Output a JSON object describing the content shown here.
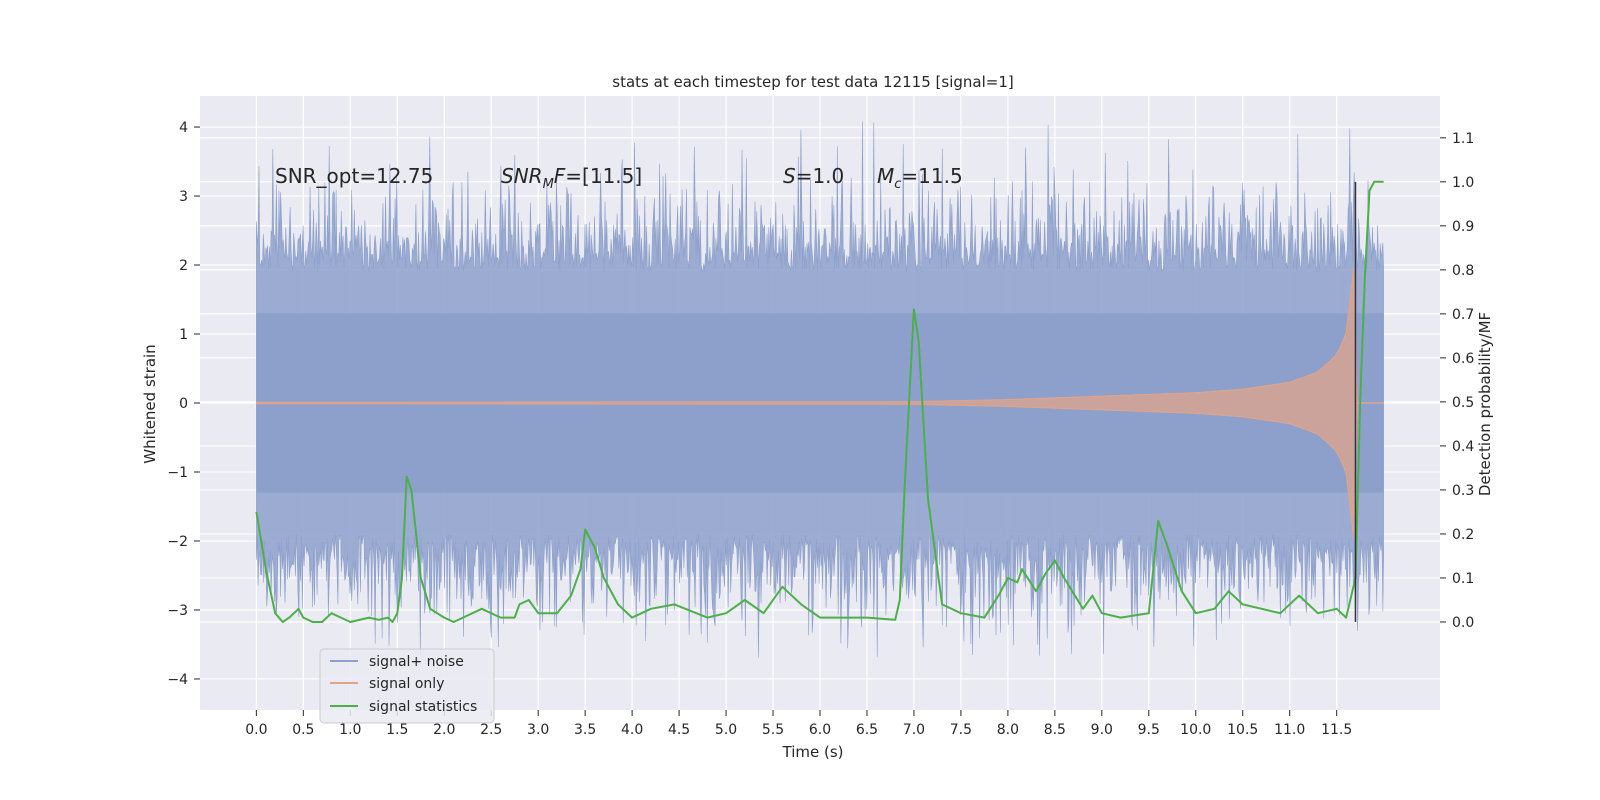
{
  "chart_data": {
    "type": "line",
    "title": "stats at each timestep for test data 12115 [signal=1]",
    "xlabel": "Time (s)",
    "ylabel_left": "Whitened strain",
    "ylabel_right": "Detection probability/MF",
    "xlim": [
      -0.6,
      12.6
    ],
    "ylim_left": [
      -4.45,
      4.45
    ],
    "ylim_right": [
      -0.2,
      1.195
    ],
    "x_ticks": [
      "0.0",
      "0.5",
      "1.0",
      "1.5",
      "2.0",
      "2.5",
      "3.0",
      "3.5",
      "4.0",
      "4.5",
      "5.0",
      "5.5",
      "6.0",
      "6.5",
      "7.0",
      "7.5",
      "8.0",
      "8.5",
      "9.0",
      "9.5",
      "10.0",
      "10.5",
      "11.0",
      "11.5"
    ],
    "y_ticks_left": [
      "4",
      "3",
      "2",
      "1",
      "0",
      "−1",
      "−2",
      "−3",
      "−4"
    ],
    "y_ticks_right": [
      "1.1",
      "1.0",
      "0.9",
      "0.8",
      "0.7",
      "0.6",
      "0.5",
      "0.4",
      "0.3",
      "0.2",
      "0.1",
      "0.0"
    ],
    "grid": true,
    "legend_position": "bottom-left",
    "annotations": {
      "snr_opt": "SNR_opt=12.75",
      "snr_mf_var": "SNR",
      "snr_mf_sub": "M",
      "snr_mf_var2": "F",
      "snr_mf_value": "=[11.5]",
      "s_var": "S",
      "s_value": "=1.0",
      "mc_var": "M",
      "mc_sub": "c",
      "mc_value": "=11.5"
    },
    "series": [
      {
        "name": "signal+ noise",
        "color": "#8da0cb",
        "axis": "left",
        "x_range": [
          0.0,
          12.0
        ],
        "envelope_min": -3.9,
        "envelope_max": 4.1
      },
      {
        "name": "signal only",
        "color": "#e1a48a",
        "axis": "left",
        "x_range": [
          0.0,
          12.0
        ],
        "amplitude_at": {
          "x": [
            0.0,
            7.0,
            8.0,
            9.0,
            10.0,
            10.5,
            11.0,
            11.3,
            11.5,
            11.6,
            11.7
          ],
          "amp": [
            0.01,
            0.02,
            0.05,
            0.1,
            0.15,
            0.2,
            0.3,
            0.45,
            0.7,
            1.0,
            2.2
          ]
        }
      },
      {
        "name": "signal statistics",
        "color": "#4daf4a",
        "axis": "right",
        "x": [
          0.0,
          0.1,
          0.2,
          0.28,
          0.35,
          0.45,
          0.5,
          0.6,
          0.7,
          0.8,
          0.9,
          1.0,
          1.2,
          1.3,
          1.4,
          1.45,
          1.5,
          1.55,
          1.6,
          1.65,
          1.7,
          1.75,
          1.85,
          2.0,
          2.1,
          2.2,
          2.4,
          2.6,
          2.75,
          2.8,
          2.9,
          3.0,
          3.2,
          3.35,
          3.45,
          3.5,
          3.6,
          3.7,
          3.85,
          4.0,
          4.2,
          4.45,
          4.8,
          5.0,
          5.2,
          5.4,
          5.6,
          5.8,
          6.0,
          6.2,
          6.5,
          6.8,
          6.85,
          6.9,
          7.0,
          7.05,
          7.15,
          7.3,
          7.5,
          7.75,
          7.9,
          8.0,
          8.1,
          8.15,
          8.3,
          8.4,
          8.5,
          8.6,
          8.8,
          8.9,
          9.0,
          9.2,
          9.5,
          9.6,
          9.7,
          9.85,
          10.0,
          10.2,
          10.35,
          10.5,
          10.9,
          11.1,
          11.3,
          11.5,
          11.6,
          11.7,
          11.75,
          11.8,
          11.85,
          11.9,
          12.0
        ],
        "y": [
          0.25,
          0.12,
          0.02,
          0.0,
          0.01,
          0.03,
          0.01,
          0.0,
          0.0,
          0.02,
          0.01,
          0.0,
          0.01,
          0.005,
          0.01,
          0.0,
          0.02,
          0.1,
          0.33,
          0.3,
          0.2,
          0.1,
          0.03,
          0.01,
          0.0,
          0.01,
          0.03,
          0.01,
          0.01,
          0.04,
          0.05,
          0.02,
          0.02,
          0.06,
          0.12,
          0.21,
          0.17,
          0.1,
          0.04,
          0.01,
          0.03,
          0.04,
          0.01,
          0.02,
          0.05,
          0.02,
          0.08,
          0.04,
          0.01,
          0.01,
          0.01,
          0.005,
          0.05,
          0.3,
          0.71,
          0.64,
          0.28,
          0.04,
          0.02,
          0.01,
          0.06,
          0.1,
          0.09,
          0.12,
          0.07,
          0.11,
          0.14,
          0.1,
          0.03,
          0.06,
          0.02,
          0.01,
          0.02,
          0.23,
          0.17,
          0.07,
          0.02,
          0.03,
          0.07,
          0.04,
          0.02,
          0.06,
          0.02,
          0.03,
          0.01,
          0.1,
          0.5,
          0.78,
          0.98,
          1.0,
          1.0
        ]
      }
    ],
    "vertical_marker": {
      "x": 11.7,
      "color": "#333333"
    }
  }
}
